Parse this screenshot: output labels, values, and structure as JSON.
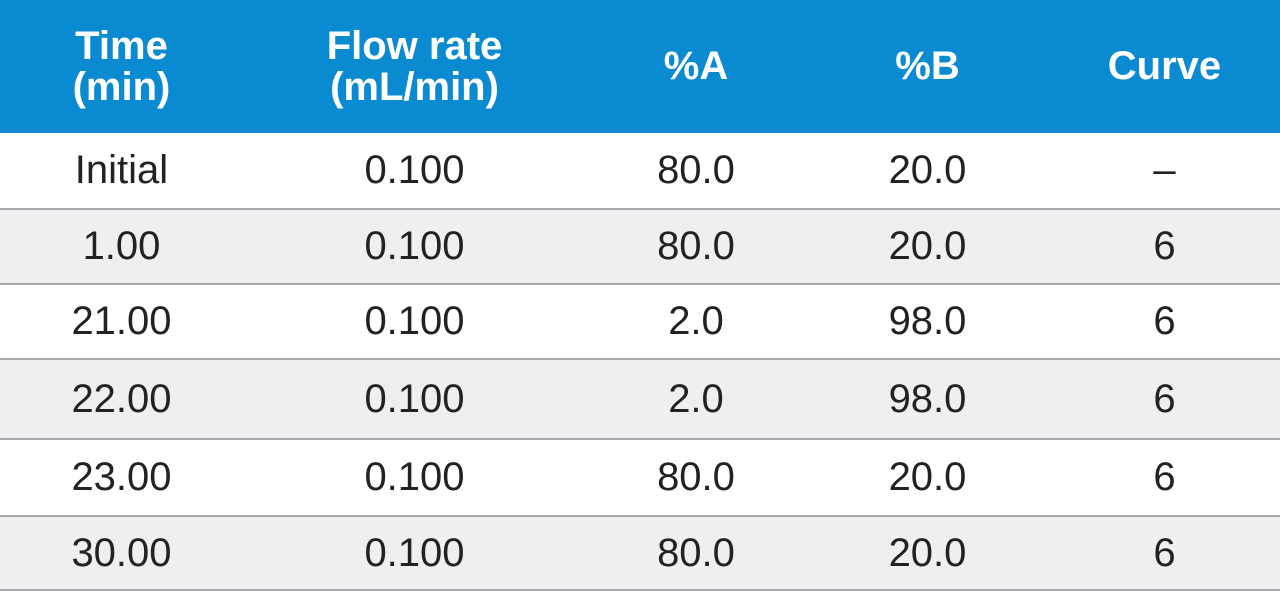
{
  "table": {
    "columns": [
      {
        "line1": "Time",
        "line2": "(min)"
      },
      {
        "line1": "Flow rate",
        "line2": "(mL/min)"
      },
      {
        "line1": "%A",
        "line2": ""
      },
      {
        "line1": "%B",
        "line2": ""
      },
      {
        "line1": "Curve",
        "line2": ""
      }
    ],
    "rows": [
      [
        "Initial",
        "0.100",
        "80.0",
        "20.0",
        "–"
      ],
      [
        "1.00",
        "0.100",
        "80.0",
        "20.0",
        "6"
      ],
      [
        "21.00",
        "0.100",
        "2.0",
        "98.0",
        "6"
      ],
      [
        "22.00",
        "0.100",
        "2.0",
        "98.0",
        "6"
      ],
      [
        "23.00",
        "0.100",
        "80.0",
        "20.0",
        "6"
      ],
      [
        "30.00",
        "0.100",
        "80.0",
        "20.0",
        "6"
      ]
    ],
    "colors": {
      "header_bg": "#0a8ad1",
      "header_text": "#ffffff",
      "row_alt_bg": "#efeff1",
      "row_border": "#a7a9ac"
    }
  }
}
